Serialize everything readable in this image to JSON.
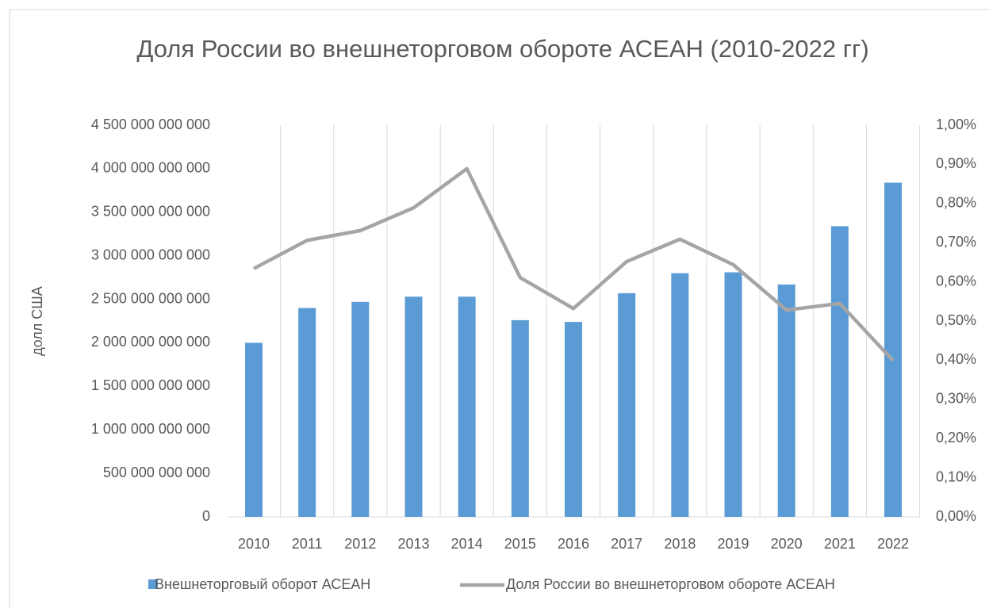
{
  "chart_data": {
    "type": "bar_line",
    "title": "Доля России во внешнеторговом обороте АСЕАН (2010-2022 гг)",
    "y_label": "долл США",
    "categories": [
      "2010",
      "2011",
      "2012",
      "2013",
      "2014",
      "2015",
      "2016",
      "2017",
      "2018",
      "2019",
      "2020",
      "2021",
      "2022"
    ],
    "series": [
      {
        "name": "Внешнеторговый оборот АСЕАН",
        "type": "bar",
        "color": "#5b9bd5",
        "values": [
          2000000000000,
          2400000000000,
          2470000000000,
          2530000000000,
          2530000000000,
          2260000000000,
          2240000000000,
          2570000000000,
          2800000000000,
          2810000000000,
          2670000000000,
          3340000000000,
          3840000000000
        ]
      },
      {
        "name": "Доля России во внешнеторговом обороте АСЕАН",
        "type": "line",
        "color": "#a5a5a5",
        "axis": "y2",
        "values": [
          0.634,
          0.706,
          0.731,
          0.789,
          0.889,
          0.611,
          0.532,
          0.652,
          0.709,
          0.644,
          0.528,
          0.545,
          0.399
        ]
      }
    ],
    "ylim": [
      0,
      4500000000000
    ],
    "yticks": [
      0,
      {
        "value": 500000000000,
        "label": "500 000 000 000"
      },
      {
        "value": 1000000000000,
        "label": "1 000 000 000 000"
      },
      {
        "value": 1500000000000,
        "label": "1 500 000 000 000"
      },
      {
        "value": 2000000000000,
        "label": "2 000 000 000 000"
      },
      {
        "value": 2500000000000,
        "label": "2 500 000 000 000"
      },
      {
        "value": 3000000000000,
        "label": "3 000 000 000 000"
      },
      {
        "value": 3500000000000,
        "label": "3 500 000 000 000"
      },
      {
        "value": 4000000000000,
        "label": "4 000 000 000 000"
      },
      {
        "value": 4500000000000,
        "label": "4 500 000 000 000"
      }
    ],
    "y2lim": [
      0,
      1
    ],
    "y2ticks": [
      {
        "value": 0,
        "label": "0,00%"
      },
      {
        "value": 0.1,
        "label": "0,10%"
      },
      {
        "value": 0.2,
        "label": "0,20%"
      },
      {
        "value": 0.3,
        "label": "0,30%"
      },
      {
        "value": 0.4,
        "label": "0,40%"
      },
      {
        "value": 0.5,
        "label": "0,50%"
      },
      {
        "value": 0.6,
        "label": "0,60%"
      },
      {
        "value": 0.7,
        "label": "0,70%"
      },
      {
        "value": 0.8,
        "label": "0,80%"
      },
      {
        "value": 0.9,
        "label": "0,90%"
      },
      {
        "value": 1,
        "label": "1,00%"
      }
    ],
    "grid": true,
    "legend": "bottom"
  }
}
